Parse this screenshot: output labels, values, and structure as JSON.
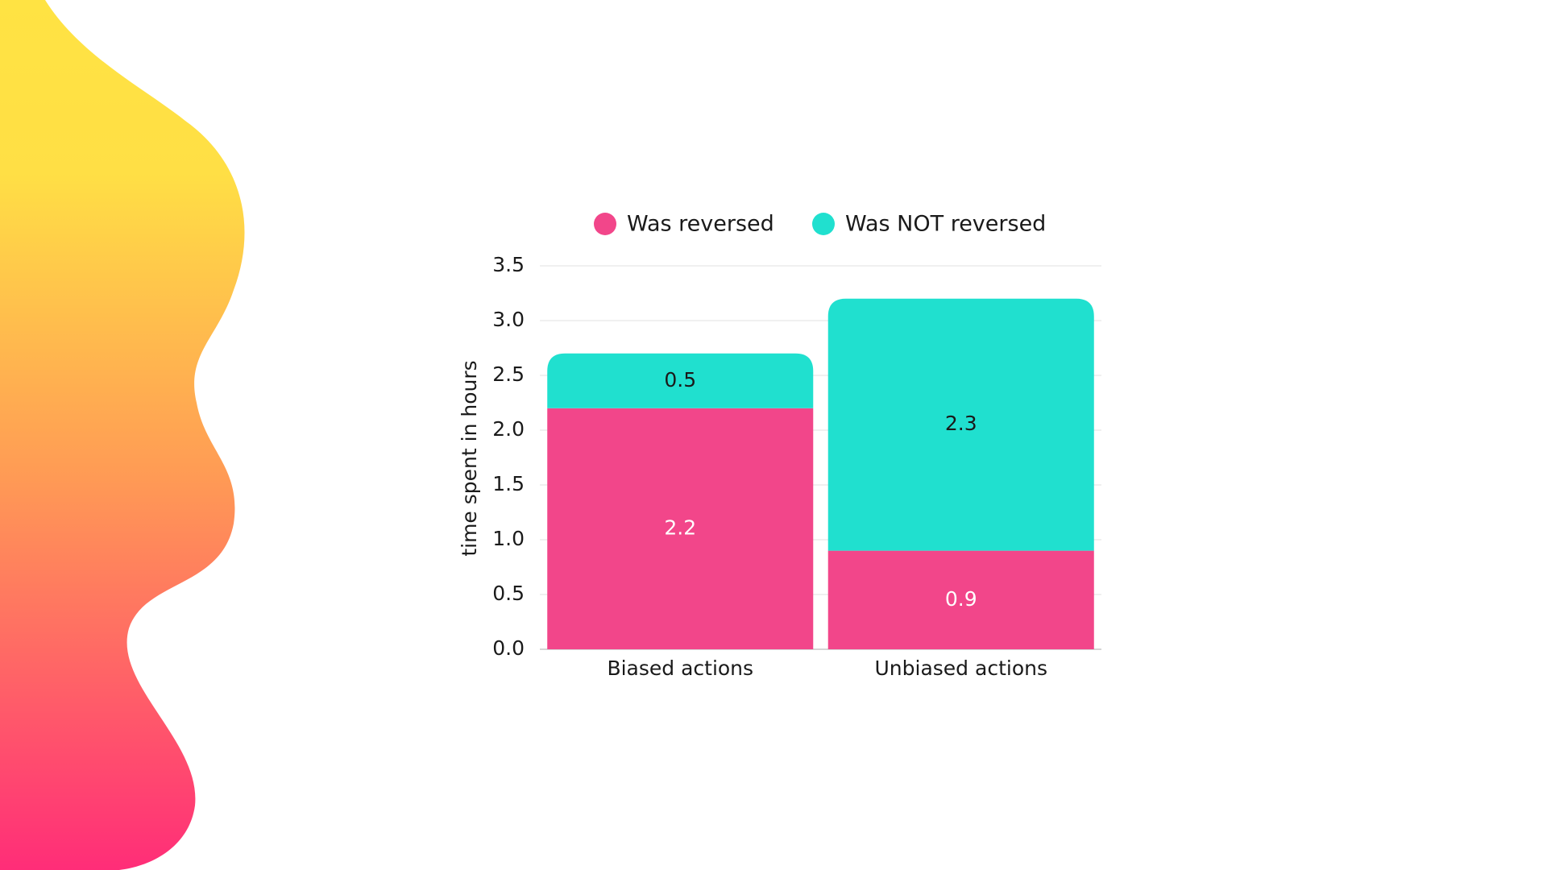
{
  "chart_data": {
    "type": "stacked-bar",
    "y_label": "time spent in hours",
    "categories": [
      "Biased actions",
      "Unbiased actions"
    ],
    "series": [
      {
        "name": "Was reversed",
        "color": "#f2468a",
        "values": [
          2.2,
          0.9
        ]
      },
      {
        "name": "Was NOT reversed",
        "color": "#20e0cf",
        "values": [
          0.5,
          2.3
        ]
      }
    ],
    "ylim": [
      0,
      3.5
    ],
    "yticks": [
      {
        "value": 0,
        "label": "0.0"
      },
      0.5,
      {
        "value": 1,
        "label": "1.0"
      },
      1.5,
      {
        "value": 2,
        "label": "2.0"
      },
      2.5,
      {
        "value": 3,
        "label": "3.0"
      },
      3.5
    ],
    "grid": true,
    "legend": "top"
  }
}
